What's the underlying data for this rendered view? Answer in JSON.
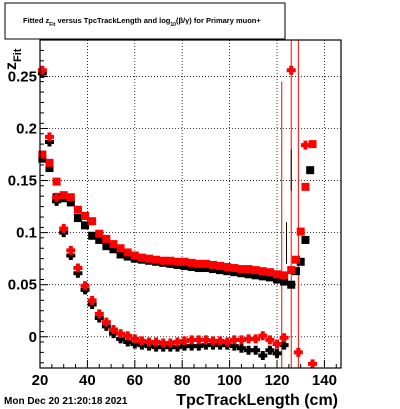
{
  "title": "Fitted z_Fit versus TpcTrackLength and log_10(β/γ) for Primary muon+",
  "title_parts": {
    "t1": "Fitted  z",
    "t1_sub": "Fit",
    "t2": " versus TpcTrackLength and log",
    "t2_sub": "10",
    "t3": "(β/γ) for Primary muon+"
  },
  "timestamp": "Mon Dec 20 21:20:18 2021",
  "colors": {
    "red": "#ff0000",
    "black": "#000000",
    "grid": "#000000"
  },
  "chart_data": {
    "type": "scatter",
    "title": "Fitted z_Fit versus TpcTrackLength and log_10(β/γ) for Primary muon+",
    "xlabel": "TpcTrackLength (cm)",
    "ylabel": "z",
    "ylabel_sub": "Fit",
    "xlim": [
      20,
      147
    ],
    "ylim": [
      -0.03,
      0.285
    ],
    "xticks": [
      20,
      40,
      60,
      80,
      100,
      120,
      140
    ],
    "yticks": [
      0,
      0.05,
      0.1,
      0.15,
      0.2,
      0.25
    ],
    "ytick_labels": [
      "0",
      "0.05",
      "0.1",
      "0.15",
      "0.2",
      "0.25"
    ],
    "grid": true,
    "series": [
      {
        "color": "#000000",
        "marker": "square",
        "points": [
          [
            21,
            0.171
          ],
          [
            24,
            0.162
          ],
          [
            27,
            0.134
          ],
          [
            30,
            0.133
          ],
          [
            33,
            0.129
          ],
          [
            36,
            0.114
          ],
          [
            39,
            0.107
          ],
          [
            42,
            0.097
          ],
          [
            45,
            0.093
          ],
          [
            48,
            0.087
          ],
          [
            51,
            0.084
          ],
          [
            54,
            0.079
          ],
          [
            57,
            0.077
          ],
          [
            60,
            0.075
          ],
          [
            63,
            0.074
          ],
          [
            66,
            0.073
          ],
          [
            69,
            0.072
          ],
          [
            72,
            0.071
          ],
          [
            75,
            0.07
          ],
          [
            78,
            0.069
          ],
          [
            81,
            0.068
          ],
          [
            84,
            0.067
          ],
          [
            87,
            0.066
          ],
          [
            90,
            0.066
          ],
          [
            93,
            0.065
          ],
          [
            96,
            0.064
          ],
          [
            99,
            0.063
          ],
          [
            102,
            0.062
          ],
          [
            105,
            0.061
          ],
          [
            108,
            0.06
          ],
          [
            111,
            0.059
          ],
          [
            114,
            0.058
          ],
          [
            117,
            0.057
          ],
          [
            120,
            0.055
          ],
          [
            123,
            0.053
          ],
          [
            126,
            0.05
          ],
          [
            128,
            0.063
          ],
          [
            130,
            0.072
          ],
          [
            132,
            0.093
          ],
          [
            134,
            0.16
          ]
        ]
      },
      {
        "color": "#ff0000",
        "marker": "square",
        "points": [
          [
            21,
            0.175
          ],
          [
            24,
            0.167
          ],
          [
            27,
            0.149
          ],
          [
            30,
            0.136
          ],
          [
            33,
            0.134
          ],
          [
            36,
            0.122
          ],
          [
            39,
            0.116
          ],
          [
            42,
            0.111
          ],
          [
            45,
            0.099
          ],
          [
            48,
            0.094
          ],
          [
            51,
            0.089
          ],
          [
            54,
            0.085
          ],
          [
            57,
            0.081
          ],
          [
            60,
            0.078
          ],
          [
            63,
            0.076
          ],
          [
            66,
            0.075
          ],
          [
            69,
            0.074
          ],
          [
            72,
            0.073
          ],
          [
            75,
            0.073
          ],
          [
            78,
            0.072
          ],
          [
            81,
            0.072
          ],
          [
            84,
            0.071
          ],
          [
            87,
            0.07
          ],
          [
            90,
            0.07
          ],
          [
            93,
            0.069
          ],
          [
            96,
            0.068
          ],
          [
            99,
            0.067
          ],
          [
            102,
            0.066
          ],
          [
            105,
            0.065
          ],
          [
            108,
            0.065
          ],
          [
            111,
            0.064
          ],
          [
            114,
            0.063
          ],
          [
            117,
            0.062
          ],
          [
            120,
            0.06
          ],
          [
            123,
            0.059
          ],
          [
            126,
            0.064
          ],
          [
            128,
            0.074
          ],
          [
            130,
            0.101
          ],
          [
            132,
            0.144
          ],
          [
            135,
            0.185
          ]
        ]
      },
      {
        "color": "#000000",
        "marker": "circle",
        "points": [
          [
            21,
            0.253
          ],
          [
            24,
            0.187
          ],
          [
            27,
            0.13
          ],
          [
            30,
            0.1
          ],
          [
            33,
            0.078
          ],
          [
            36,
            0.061
          ],
          [
            39,
            0.045
          ],
          [
            42,
            0.031
          ],
          [
            45,
            0.018
          ],
          [
            48,
            0.01
          ],
          [
            51,
            0.003
          ],
          [
            54,
            -0.002
          ],
          [
            57,
            -0.005
          ],
          [
            60,
            -0.007
          ],
          [
            63,
            -0.008
          ],
          [
            66,
            -0.009
          ],
          [
            69,
            -0.01
          ],
          [
            72,
            -0.01
          ],
          [
            75,
            -0.01
          ],
          [
            78,
            -0.01
          ],
          [
            81,
            -0.009
          ],
          [
            84,
            -0.009
          ],
          [
            87,
            -0.009
          ],
          [
            90,
            -0.008
          ],
          [
            93,
            -0.008
          ],
          [
            96,
            -0.008
          ],
          [
            99,
            -0.008
          ],
          [
            102,
            -0.009
          ],
          [
            105,
            -0.011
          ],
          [
            108,
            -0.013
          ],
          [
            111,
            -0.013
          ],
          [
            114,
            -0.018
          ],
          [
            117,
            -0.013
          ],
          [
            120,
            -0.016
          ],
          [
            123,
            -0.008
          ]
        ]
      },
      {
        "color": "#ff0000",
        "marker": "circle",
        "points": [
          [
            21,
            0.256
          ],
          [
            24,
            0.192
          ],
          [
            27,
            0.134
          ],
          [
            30,
            0.104
          ],
          [
            33,
            0.083
          ],
          [
            36,
            0.066
          ],
          [
            39,
            0.049
          ],
          [
            42,
            0.035
          ],
          [
            45,
            0.022
          ],
          [
            48,
            0.014
          ],
          [
            51,
            0.007
          ],
          [
            54,
            0.003
          ],
          [
            57,
            0.001
          ],
          [
            60,
            -0.002
          ],
          [
            63,
            -0.004
          ],
          [
            66,
            -0.005
          ],
          [
            69,
            -0.005
          ],
          [
            72,
            -0.006
          ],
          [
            75,
            -0.006
          ],
          [
            78,
            -0.005
          ],
          [
            81,
            -0.004
          ],
          [
            84,
            -0.003
          ],
          [
            87,
            -0.003
          ],
          [
            90,
            -0.003
          ],
          [
            93,
            -0.004
          ],
          [
            96,
            -0.004
          ],
          [
            99,
            -0.005
          ],
          [
            102,
            -0.003
          ],
          [
            105,
            -0.003
          ],
          [
            108,
            -0.002
          ],
          [
            111,
            -0.002
          ],
          [
            114,
            0.001
          ],
          [
            117,
            -0.003
          ],
          [
            120,
            -0.007
          ],
          [
            123,
            -0.001
          ],
          [
            126,
            0.256
          ],
          [
            129,
            -0.015
          ],
          [
            132,
            0.184
          ],
          [
            135,
            -0.026
          ]
        ]
      }
    ],
    "error_bars": [
      {
        "color": "#ff0000",
        "x": 126,
        "y": 0.256,
        "low": -0.03,
        "high": 0.285
      },
      {
        "color": "#ff0000",
        "x": 129,
        "y": -0.015,
        "low": -0.03,
        "high": 0.285
      },
      {
        "color": "#ff0000",
        "x": 122,
        "y": 0.144,
        "low": -0.03,
        "high": 0.245
      },
      {
        "color": "#000000",
        "x": 124,
        "y": 0.093,
        "low": 0.07,
        "high": 0.11
      },
      {
        "color": "#000000",
        "x": 126,
        "y": 0.16,
        "low": 0.14,
        "high": 0.18
      }
    ]
  }
}
